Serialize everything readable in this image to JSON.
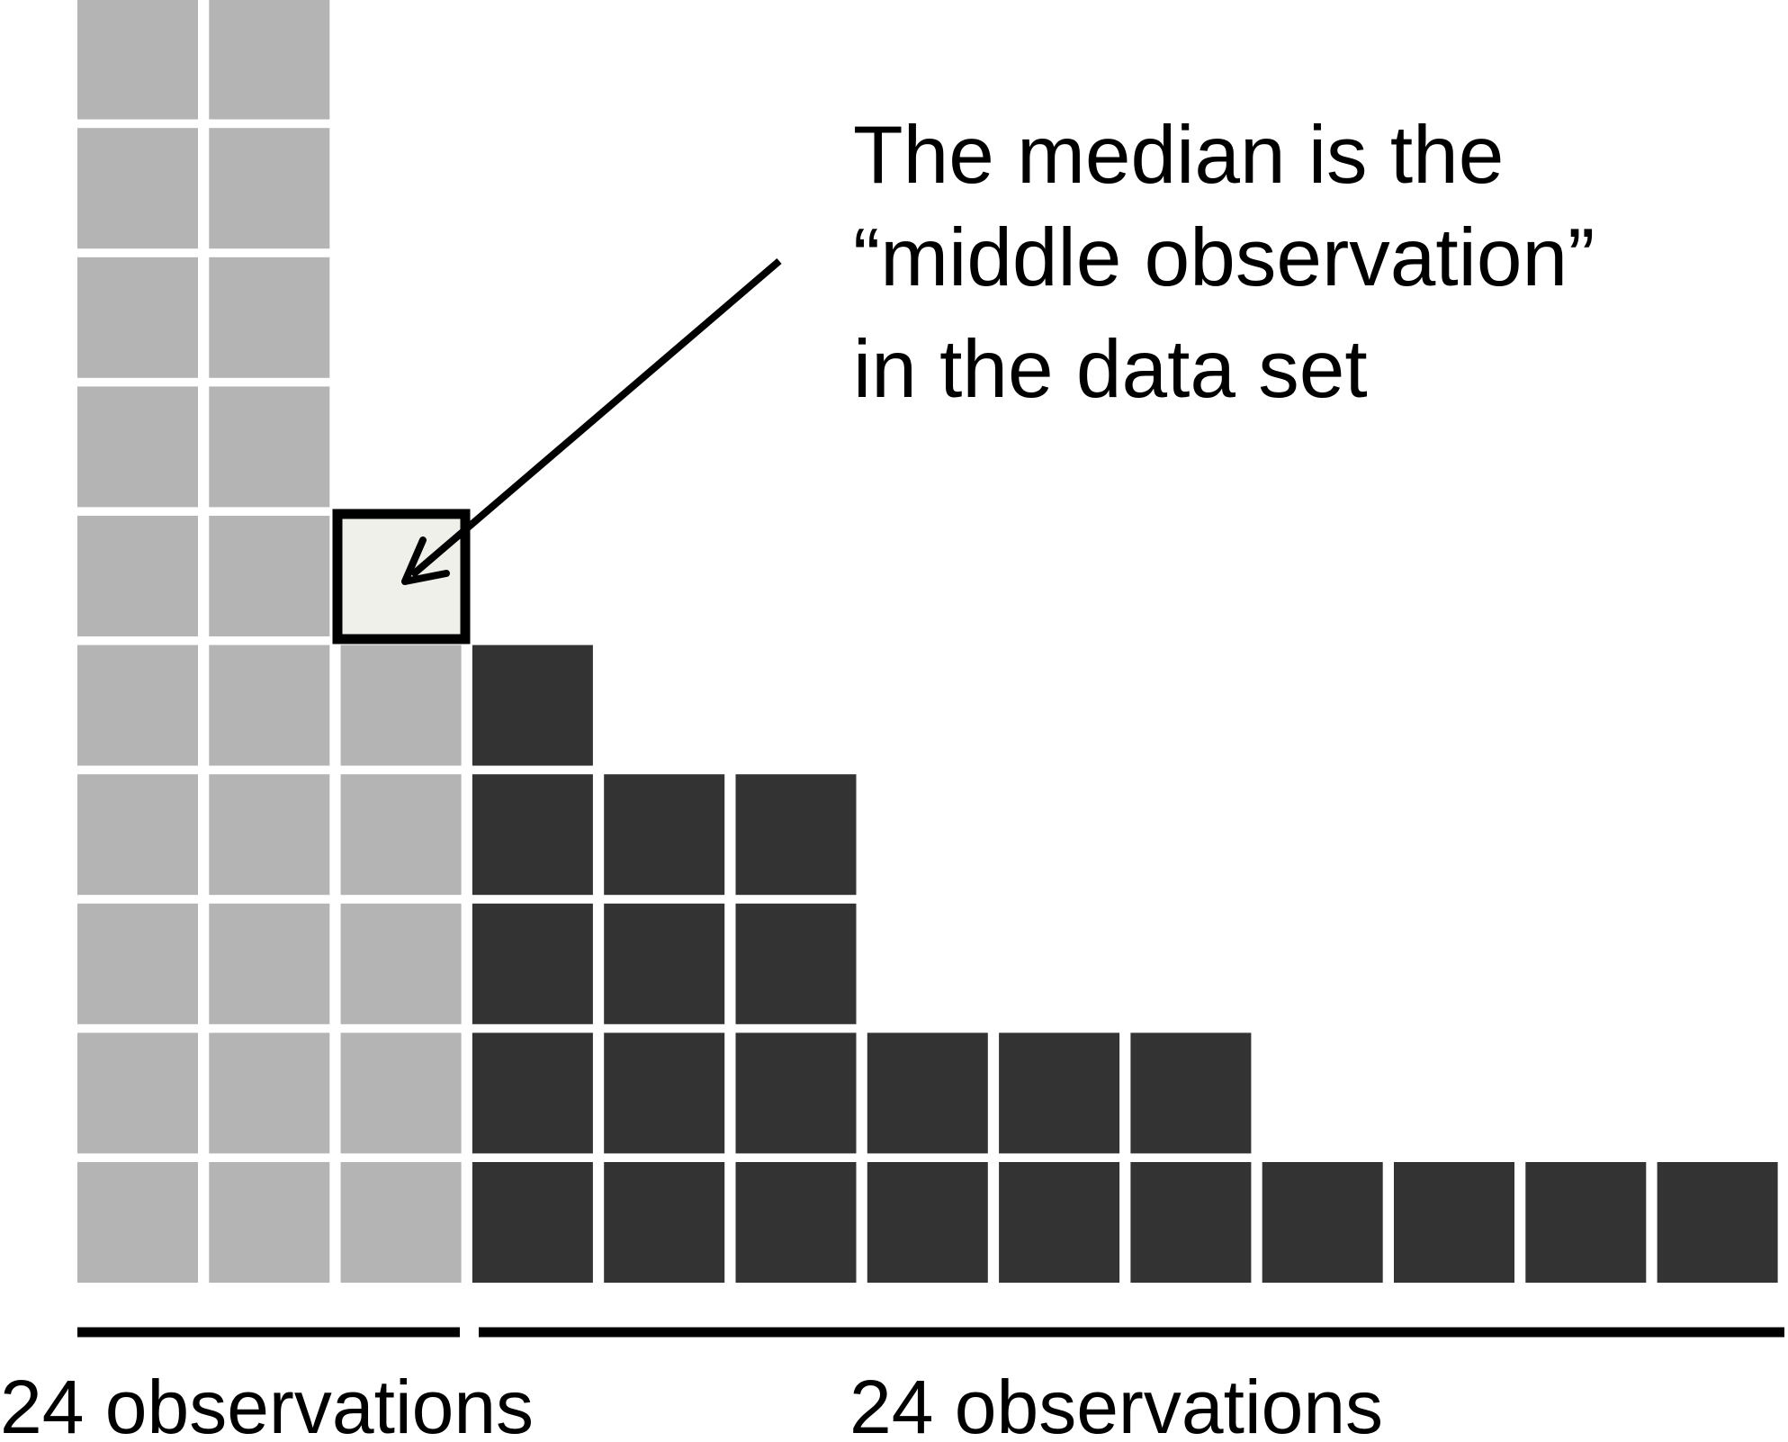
{
  "annotation": {
    "lines": [
      "The median is the",
      "“middle observation”",
      "in the data set"
    ]
  },
  "labels": {
    "left": "24 observations",
    "right": "24 observations"
  }
}
